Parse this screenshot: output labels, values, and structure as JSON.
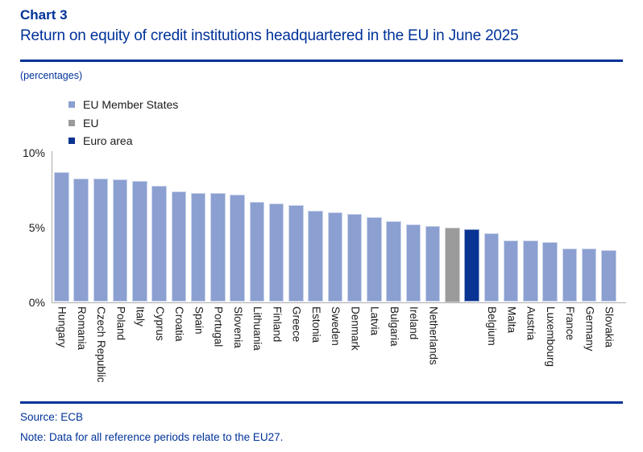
{
  "header": {
    "chart_label": "Chart 3",
    "title": "Return on equity of credit institutions headquartered in the EU in June 2025",
    "unit_note": "(percentages)"
  },
  "colors": {
    "accent_blue": "#003299",
    "member_states": "#8B9FD1",
    "eu": "#9B9B9B",
    "euro_area": "#0A3493",
    "axis": "#ABABAB",
    "text": "#1A1A1A"
  },
  "legend": [
    {
      "label": "EU Member States",
      "key": "member"
    },
    {
      "label": "EU",
      "key": "eu"
    },
    {
      "label": "Euro area",
      "key": "euro"
    }
  ],
  "chart_data": {
    "type": "bar",
    "title": "Return on equity of credit institutions headquartered in the EU in June 2025",
    "unit": "percentages",
    "ylim": [
      0,
      10
    ],
    "yticks": [
      {
        "value": 10,
        "label": "10%"
      },
      {
        "value": 5,
        "label": "5%"
      },
      {
        "value": 0,
        "label": "0%"
      }
    ],
    "grid": false,
    "legend_position": "top-left",
    "bars": [
      {
        "name": "Hungary",
        "axis_label": "Hungary",
        "value": 8.7,
        "group": "member"
      },
      {
        "name": "Romania",
        "axis_label": "Romania",
        "value": 8.3,
        "group": "member"
      },
      {
        "name": "Czech Republic",
        "axis_label": "Czech Republic",
        "value": 8.3,
        "group": "member"
      },
      {
        "name": "Poland",
        "axis_label": "Poland",
        "value": 8.2,
        "group": "member"
      },
      {
        "name": "Italy",
        "axis_label": "Italy",
        "value": 8.1,
        "group": "member"
      },
      {
        "name": "Cyprus",
        "axis_label": "Cyprus",
        "value": 7.8,
        "group": "member"
      },
      {
        "name": "Croatia",
        "axis_label": "Croatia",
        "value": 7.4,
        "group": "member"
      },
      {
        "name": "Spain",
        "axis_label": "Spain",
        "value": 7.3,
        "group": "member"
      },
      {
        "name": "Portugal",
        "axis_label": "Portugal",
        "value": 7.3,
        "group": "member"
      },
      {
        "name": "Slovenia",
        "axis_label": "Slovenia",
        "value": 7.2,
        "group": "member"
      },
      {
        "name": "Lithuania",
        "axis_label": "Lithuania",
        "value": 6.7,
        "group": "member"
      },
      {
        "name": "Finland",
        "axis_label": "Finland",
        "value": 6.6,
        "group": "member"
      },
      {
        "name": "Greece",
        "axis_label": "Greece",
        "value": 6.5,
        "group": "member"
      },
      {
        "name": "Estonia",
        "axis_label": "Estonia",
        "value": 6.1,
        "group": "member"
      },
      {
        "name": "Sweden",
        "axis_label": "Sweden",
        "value": 6.0,
        "group": "member"
      },
      {
        "name": "Denmark",
        "axis_label": "Denmark",
        "value": 5.9,
        "group": "member"
      },
      {
        "name": "Latvia",
        "axis_label": "Latvia",
        "value": 5.7,
        "group": "member"
      },
      {
        "name": "Bulgaria",
        "axis_label": "Bulgaria",
        "value": 5.4,
        "group": "member"
      },
      {
        "name": "Ireland",
        "axis_label": "Ireland",
        "value": 5.2,
        "group": "member"
      },
      {
        "name": "Netherlands",
        "axis_label": "Netherlands",
        "value": 5.1,
        "group": "member"
      },
      {
        "name": "EU",
        "axis_label": "",
        "value": 5.0,
        "group": "eu"
      },
      {
        "name": "Euro area",
        "axis_label": "",
        "value": 4.9,
        "group": "euro"
      },
      {
        "name": "Belgium",
        "axis_label": "Belgium",
        "value": 4.6,
        "group": "member"
      },
      {
        "name": "Malta",
        "axis_label": "Malta",
        "value": 4.1,
        "group": "member"
      },
      {
        "name": "Austria",
        "axis_label": "Austria",
        "value": 4.1,
        "group": "member"
      },
      {
        "name": "Luxembourg",
        "axis_label": "Luxembourg",
        "value": 4.0,
        "group": "member"
      },
      {
        "name": "France",
        "axis_label": "France",
        "value": 3.6,
        "group": "member"
      },
      {
        "name": "Germany",
        "axis_label": "Germany",
        "value": 3.6,
        "group": "member"
      },
      {
        "name": "Slovakia",
        "axis_label": "Slovakia",
        "value": 3.5,
        "group": "member"
      }
    ]
  },
  "footer": {
    "source": "Source: ECB",
    "note": "Note: Data for all reference periods relate to the EU27."
  }
}
